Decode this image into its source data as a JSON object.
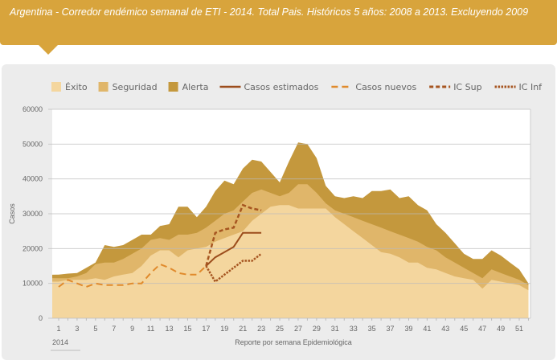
{
  "header": {
    "title": "Argentina - Corredor endémico semanal de ETI - 2014. Total Pais. Históricos 5 años: 2008 a 2013. Excluyendo 2009"
  },
  "chart_data": {
    "type": "area",
    "title": "Argentina - Corredor endémico semanal de ETI - 2014. Total Pais. Históricos 5 años: 2008 a 2013. Excluyendo 2009",
    "xlabel": "Reporte por semana Epidemiológica",
    "ylabel": "Casos",
    "x_sublabel": "2014",
    "ylim": [
      0,
      60000
    ],
    "yticks": [
      0,
      10000,
      20000,
      30000,
      40000,
      50000,
      60000
    ],
    "xticks": [
      1,
      3,
      5,
      7,
      9,
      11,
      13,
      15,
      17,
      19,
      21,
      23,
      25,
      27,
      29,
      31,
      33,
      35,
      37,
      39,
      41,
      43,
      45,
      47,
      49,
      51
    ],
    "grid": true,
    "legend_position": "top",
    "weeks": [
      1,
      2,
      3,
      4,
      5,
      6,
      7,
      8,
      9,
      10,
      11,
      12,
      13,
      14,
      15,
      16,
      17,
      18,
      19,
      20,
      21,
      22,
      23,
      24,
      25,
      26,
      27,
      28,
      29,
      30,
      31,
      32,
      33,
      34,
      35,
      36,
      37,
      38,
      39,
      40,
      41,
      42,
      43,
      44,
      45,
      46,
      47,
      48,
      49,
      50,
      51,
      52
    ],
    "areas": [
      {
        "name": "Alerta",
        "color": "#c4983d",
        "values": [
          12500,
          12800,
          13000,
          14500,
          16000,
          21000,
          20500,
          21000,
          22500,
          24000,
          24000,
          26500,
          27000,
          32000,
          32000,
          29000,
          32000,
          36500,
          39500,
          38500,
          43000,
          45500,
          45000,
          42000,
          39000,
          45000,
          50500,
          50000,
          46000,
          38000,
          35000,
          34500,
          35000,
          34500,
          36500,
          36500,
          37000,
          34500,
          35000,
          32500,
          31000,
          27000,
          24500,
          21500,
          18500,
          17000,
          17000,
          19500,
          18000,
          16000,
          14000,
          10000
        ]
      },
      {
        "name": "Seguridad",
        "color": "#e0b66a",
        "values": [
          11500,
          11500,
          12000,
          13000,
          15500,
          16000,
          16000,
          17000,
          18500,
          20000,
          22500,
          23000,
          22500,
          24000,
          24000,
          24500,
          26000,
          28000,
          30000,
          31000,
          33500,
          36000,
          37000,
          36000,
          35000,
          36000,
          38500,
          38500,
          36000,
          33000,
          31000,
          30000,
          29000,
          28000,
          27000,
          26000,
          25000,
          24000,
          23000,
          22000,
          20500,
          19500,
          17500,
          16000,
          14500,
          13000,
          11500,
          14000,
          13000,
          12000,
          11000,
          9500
        ]
      },
      {
        "name": "Éxito",
        "color": "#f4d69e",
        "values": [
          10500,
          11000,
          11000,
          11000,
          11500,
          11000,
          12000,
          12500,
          13000,
          15000,
          18000,
          19500,
          19500,
          17500,
          19500,
          20000,
          20500,
          22000,
          23000,
          24000,
          25000,
          28000,
          30000,
          32000,
          32500,
          32500,
          31500,
          31500,
          31500,
          31500,
          29000,
          27000,
          25000,
          23000,
          21000,
          19000,
          18500,
          17500,
          16000,
          16000,
          14500,
          14000,
          13000,
          12000,
          11500,
          11000,
          8500,
          11000,
          10500,
          10000,
          9500,
          8000
        ]
      }
    ],
    "lines": [
      {
        "name": "Casos estimados",
        "color": "#9c4d1c",
        "style": "solid",
        "weeks": [
          17,
          18,
          19,
          20,
          21,
          22,
          23
        ],
        "values": [
          15000,
          17500,
          19000,
          20500,
          24500,
          24500,
          24500
        ]
      },
      {
        "name": "Casos nuevos",
        "color": "#e08a2c",
        "style": "dashed",
        "weeks": [
          1,
          2,
          3,
          4,
          5,
          6,
          7,
          8,
          9,
          10,
          11,
          12,
          13,
          14,
          15,
          16,
          17
        ],
        "values": [
          9000,
          11000,
          10000,
          9000,
          10000,
          9500,
          9500,
          9500,
          10000,
          10000,
          13000,
          15500,
          14500,
          13000,
          12500,
          12500,
          15000
        ]
      },
      {
        "name": "IC Sup",
        "color": "#a65520",
        "style": "dashed-heavy",
        "weeks": [
          17,
          18,
          19,
          20,
          21,
          22,
          23
        ],
        "values": [
          15000,
          24500,
          25500,
          26000,
          32500,
          31500,
          31000
        ]
      },
      {
        "name": "IC Inf",
        "color": "#a65520",
        "style": "dotted",
        "weeks": [
          17,
          18,
          19,
          20,
          21,
          22,
          23
        ],
        "values": [
          15000,
          10500,
          12500,
          14500,
          16500,
          16500,
          18500
        ]
      }
    ]
  }
}
